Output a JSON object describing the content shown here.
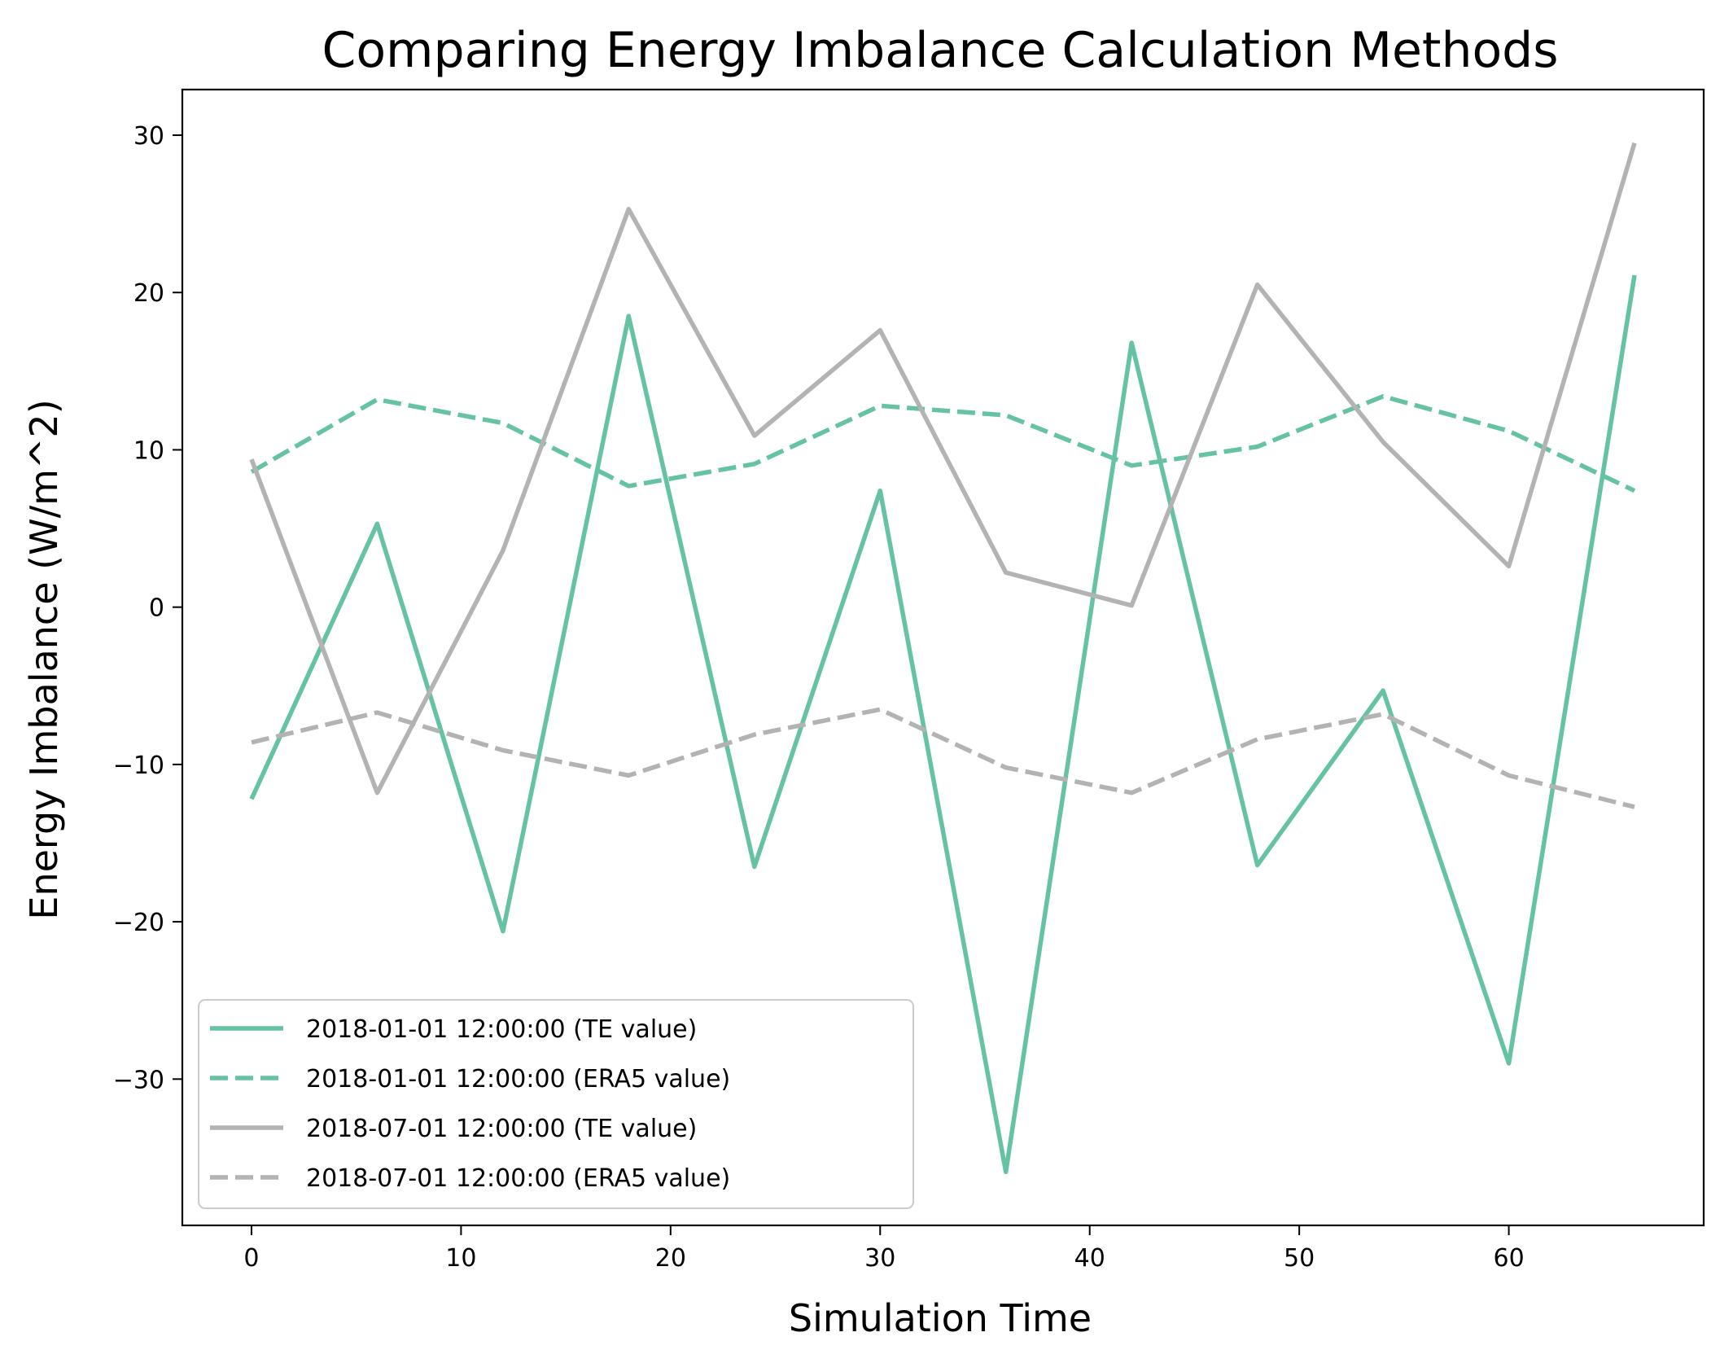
{
  "chart_data": {
    "type": "line",
    "title": "Comparing Energy Imbalance Calculation Methods",
    "xlabel": "Simulation Time",
    "ylabel": "Energy Imbalance (W/m^2)",
    "xlim": [
      -3.3,
      69.3
    ],
    "ylim": [
      -39.3,
      32.9
    ],
    "xticks": [
      0,
      10,
      20,
      30,
      40,
      50,
      60
    ],
    "yticks": [
      -30,
      -20,
      -10,
      0,
      10,
      20,
      30
    ],
    "x": [
      0,
      6,
      12,
      18,
      24,
      30,
      36,
      42,
      48,
      54,
      60,
      66
    ],
    "grid": false,
    "legend_position": "lower-left",
    "series": [
      {
        "name": "2018-01-01 12:00:00 (TE value)",
        "color": "#66c2a5",
        "style": "solid",
        "values": [
          -12.2,
          5.3,
          -20.6,
          18.5,
          -16.5,
          7.4,
          -35.9,
          16.8,
          -16.4,
          -5.3,
          -29.0,
          21.1
        ]
      },
      {
        "name": "2018-01-01 12:00:00 (ERA5 value)",
        "color": "#66c2a5",
        "style": "dashed",
        "values": [
          8.6,
          13.2,
          11.7,
          7.7,
          9.1,
          12.8,
          12.2,
          9.0,
          10.2,
          13.4,
          11.2,
          7.4
        ]
      },
      {
        "name": "2018-07-01 12:00:00 (TE value)",
        "color": "#b3b3b3",
        "style": "solid",
        "values": [
          9.4,
          -11.8,
          3.6,
          25.3,
          10.9,
          17.6,
          2.2,
          0.1,
          20.5,
          10.5,
          2.6,
          29.5
        ]
      },
      {
        "name": "2018-07-01 12:00:00 (ERA5 value)",
        "color": "#b3b3b3",
        "style": "dashed",
        "values": [
          -8.6,
          -6.7,
          -9.1,
          -10.7,
          -8.1,
          -6.5,
          -10.2,
          -11.8,
          -8.4,
          -6.8,
          -10.7,
          -12.7
        ]
      }
    ]
  }
}
